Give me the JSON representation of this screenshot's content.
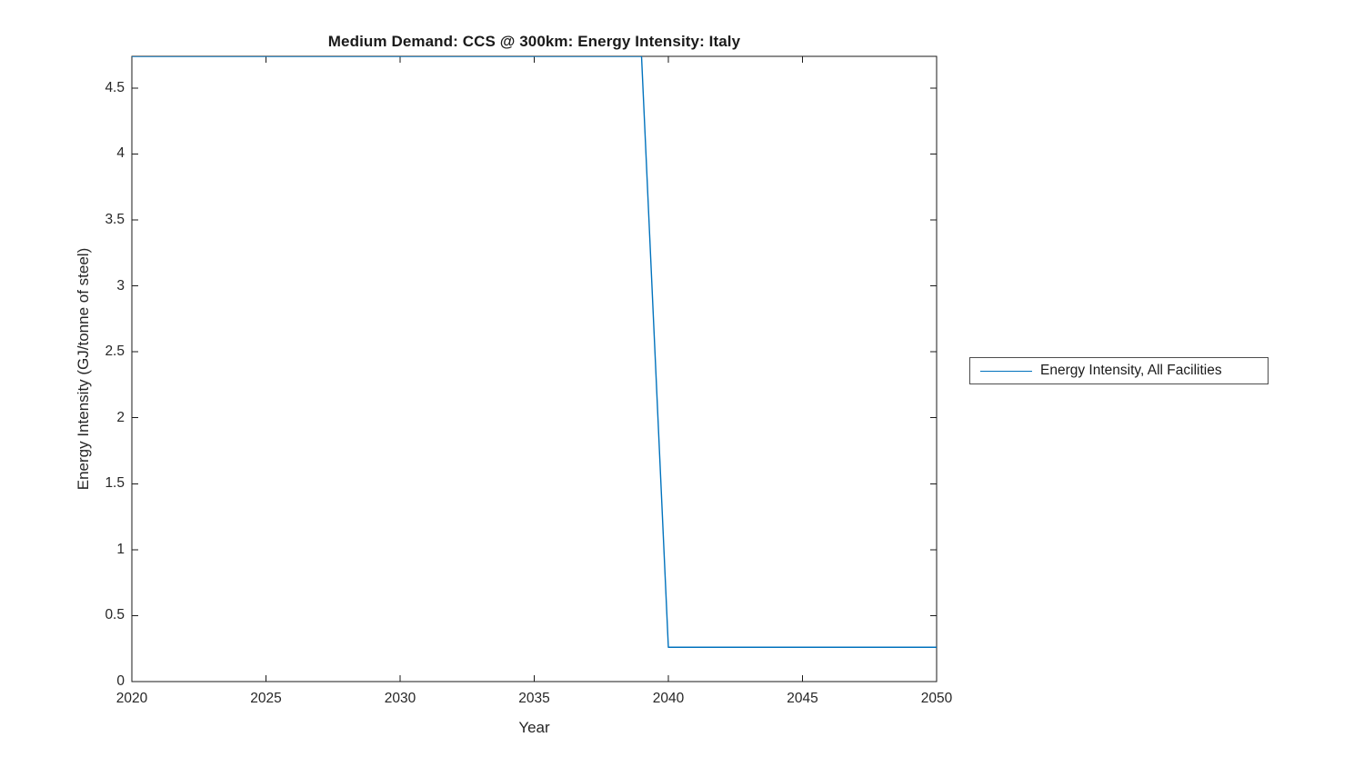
{
  "figure": {
    "background": "#ffffff"
  },
  "title": "Medium Demand: CCS @ 300km: Energy Intensity: Italy",
  "legend": {
    "label": "Energy Intensity, All Facilities",
    "line_color": "#0072BD",
    "border_color": "#4d4d4d",
    "position": "right-outside"
  },
  "colors": {
    "series_line": "#0072BD",
    "axis": "#1a1a1a",
    "text": "#262626"
  },
  "chart_data": {
    "type": "line",
    "title": "Medium Demand: CCS @ 300km: Energy Intensity: Italy",
    "xlabel": "Year",
    "ylabel": "Energy Intensity (GJ/tonne of steel)",
    "xlim": [
      2020,
      2050
    ],
    "ylim": [
      0,
      4.74
    ],
    "xticks": [
      2020,
      2025,
      2030,
      2035,
      2040,
      2045,
      2050
    ],
    "yticks": [
      0,
      0.5,
      1,
      1.5,
      2,
      2.5,
      3,
      3.5,
      4,
      4.5
    ],
    "xtick_labels": [
      "2020",
      "2025",
      "2030",
      "2035",
      "2040",
      "2045",
      "2050"
    ],
    "ytick_labels": [
      "0",
      "0.5",
      "1",
      "1.5",
      "2",
      "2.5",
      "3",
      "3.5",
      "4",
      "4.5"
    ],
    "grid": false,
    "box": true,
    "legend_position": "right-outside",
    "series": [
      {
        "name": "Energy Intensity, All Facilities",
        "color": "#0072BD",
        "x": [
          2020,
          2021,
          2022,
          2023,
          2024,
          2025,
          2026,
          2027,
          2028,
          2029,
          2030,
          2031,
          2032,
          2033,
          2034,
          2035,
          2036,
          2037,
          2038,
          2039,
          2040,
          2041,
          2042,
          2043,
          2044,
          2045,
          2046,
          2047,
          2048,
          2049,
          2050
        ],
        "y": [
          4.74,
          4.74,
          4.74,
          4.74,
          4.74,
          4.74,
          4.74,
          4.74,
          4.74,
          4.74,
          4.74,
          4.74,
          4.74,
          4.74,
          4.74,
          4.74,
          4.74,
          4.74,
          4.74,
          4.74,
          0.26,
          0.26,
          0.26,
          0.26,
          0.26,
          0.26,
          0.26,
          0.26,
          0.26,
          0.26,
          0.26
        ]
      }
    ]
  }
}
